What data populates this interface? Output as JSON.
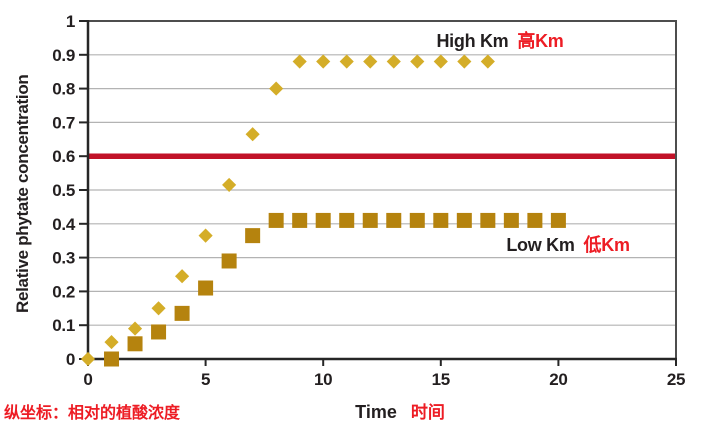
{
  "chart_data": {
    "type": "scatter",
    "title": "",
    "xlabel": "Time",
    "xlabel_cn": "时间",
    "ylabel": "Relative phytate concentration",
    "ylabel_note_cn": "纵坐标：相对的植酸浓度",
    "xlim": [
      0,
      25
    ],
    "ylim": [
      0,
      1
    ],
    "x_ticks": [
      0,
      5,
      10,
      15,
      20,
      25
    ],
    "y_ticks": [
      0,
      0.1,
      0.2,
      0.3,
      0.4,
      0.5,
      0.6,
      0.7,
      0.8,
      0.9,
      1
    ],
    "grid": true,
    "legend_position": "inline-annotations",
    "reference_line": {
      "y": 0.6,
      "color": "#c11228"
    },
    "series": [
      {
        "name": "High Km",
        "name_cn": "高Km",
        "marker": "diamond",
        "color": "#d4ad28",
        "points": [
          [
            0,
            0
          ],
          [
            1,
            0.05
          ],
          [
            2,
            0.09
          ],
          [
            3,
            0.15
          ],
          [
            4,
            0.245
          ],
          [
            5,
            0.365
          ],
          [
            6,
            0.515
          ],
          [
            7,
            0.665
          ],
          [
            8,
            0.8
          ],
          [
            9,
            0.88
          ],
          [
            10,
            0.88
          ],
          [
            11,
            0.88
          ],
          [
            12,
            0.88
          ],
          [
            13,
            0.88
          ],
          [
            14,
            0.88
          ],
          [
            15,
            0.88
          ],
          [
            16,
            0.88
          ],
          [
            17,
            0.88
          ]
        ]
      },
      {
        "name": "Low Km",
        "name_cn": "低Km",
        "marker": "square",
        "color": "#b5830e",
        "points": [
          [
            1,
            0
          ],
          [
            2,
            0.045
          ],
          [
            3,
            0.08
          ],
          [
            4,
            0.135
          ],
          [
            5,
            0.21
          ],
          [
            6,
            0.29
          ],
          [
            7,
            0.365
          ],
          [
            8,
            0.41
          ],
          [
            9,
            0.41
          ],
          [
            10,
            0.41
          ],
          [
            11,
            0.41
          ],
          [
            12,
            0.41
          ],
          [
            13,
            0.41
          ],
          [
            14,
            0.41
          ],
          [
            15,
            0.41
          ],
          [
            16,
            0.41
          ],
          [
            17,
            0.41
          ],
          [
            18,
            0.41
          ],
          [
            19,
            0.41
          ],
          [
            20,
            0.41
          ]
        ]
      }
    ],
    "colors": {
      "grid": "#b3b3b3",
      "axis": "#262626",
      "border": "#4d4d4d",
      "red_text": "#ed1c24",
      "black_text": "#231f20"
    }
  }
}
